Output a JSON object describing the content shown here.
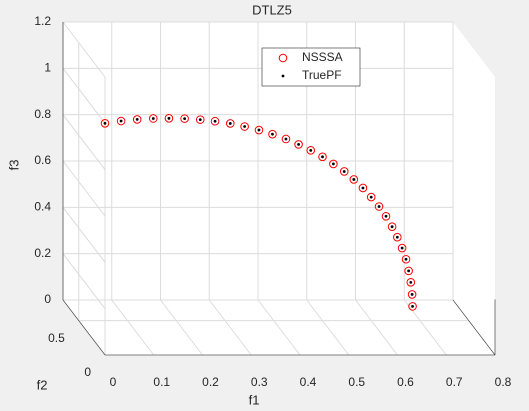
{
  "chart_data": {
    "type": "scatter3d",
    "title": "DTLZ5",
    "xlabel": "f1",
    "ylabel": "f2",
    "zlabel": "f3",
    "xlim": [
      0,
      0.8
    ],
    "xticks": [
      0,
      0.1,
      0.2,
      0.3,
      0.4,
      0.5,
      0.6,
      0.7,
      0.8
    ],
    "ylim": [
      0,
      0.8
    ],
    "yticks": [
      0,
      0.5
    ],
    "zlim": [
      0,
      1.2
    ],
    "zticks": [
      0,
      0.2,
      0.4,
      0.6,
      0.8,
      1,
      1.2
    ],
    "grid": true,
    "series": [
      {
        "name": "NSSSA",
        "color": "#ff0000",
        "marker": "circle",
        "x": [
          0.707,
          0.706,
          0.703,
          0.698,
          0.692,
          0.683,
          0.672,
          0.66,
          0.646,
          0.63,
          0.612,
          0.593,
          0.572,
          0.55,
          0.525,
          0.5,
          0.473,
          0.445,
          0.416,
          0.385,
          0.354,
          0.321,
          0.288,
          0.253,
          0.219,
          0.183,
          0.147,
          0.111,
          0.074,
          0.037,
          0
        ],
        "y": [
          0.707,
          0.706,
          0.703,
          0.698,
          0.692,
          0.683,
          0.672,
          0.66,
          0.646,
          0.63,
          0.612,
          0.593,
          0.572,
          0.55,
          0.525,
          0.5,
          0.473,
          0.445,
          0.416,
          0.385,
          0.354,
          0.321,
          0.288,
          0.253,
          0.219,
          0.183,
          0.147,
          0.111,
          0.074,
          0.037,
          0
        ],
        "z": [
          0,
          0.052,
          0.105,
          0.156,
          0.208,
          0.259,
          0.309,
          0.358,
          0.407,
          0.454,
          0.5,
          0.545,
          0.588,
          0.629,
          0.669,
          0.707,
          0.743,
          0.777,
          0.809,
          0.839,
          0.866,
          0.891,
          0.914,
          0.934,
          0.951,
          0.966,
          0.978,
          0.988,
          0.995,
          0.999,
          1
        ]
      },
      {
        "name": "TruePF",
        "color": "#000000",
        "marker": "dot",
        "x": [
          0.707,
          0.706,
          0.703,
          0.698,
          0.692,
          0.683,
          0.672,
          0.66,
          0.646,
          0.63,
          0.612,
          0.593,
          0.572,
          0.55,
          0.525,
          0.5,
          0.473,
          0.445,
          0.416,
          0.385,
          0.354,
          0.321,
          0.288,
          0.253,
          0.219,
          0.183,
          0.147,
          0.111,
          0.074,
          0.037,
          0
        ],
        "y": [
          0.707,
          0.706,
          0.703,
          0.698,
          0.692,
          0.683,
          0.672,
          0.66,
          0.646,
          0.63,
          0.612,
          0.593,
          0.572,
          0.55,
          0.525,
          0.5,
          0.473,
          0.445,
          0.416,
          0.385,
          0.354,
          0.321,
          0.288,
          0.253,
          0.219,
          0.183,
          0.147,
          0.111,
          0.074,
          0.037,
          0
        ],
        "z": [
          0,
          0.052,
          0.105,
          0.156,
          0.208,
          0.259,
          0.309,
          0.358,
          0.407,
          0.454,
          0.5,
          0.545,
          0.588,
          0.629,
          0.669,
          0.707,
          0.743,
          0.777,
          0.809,
          0.839,
          0.866,
          0.891,
          0.914,
          0.934,
          0.951,
          0.966,
          0.978,
          0.988,
          0.995,
          0.999,
          1
        ]
      }
    ]
  }
}
